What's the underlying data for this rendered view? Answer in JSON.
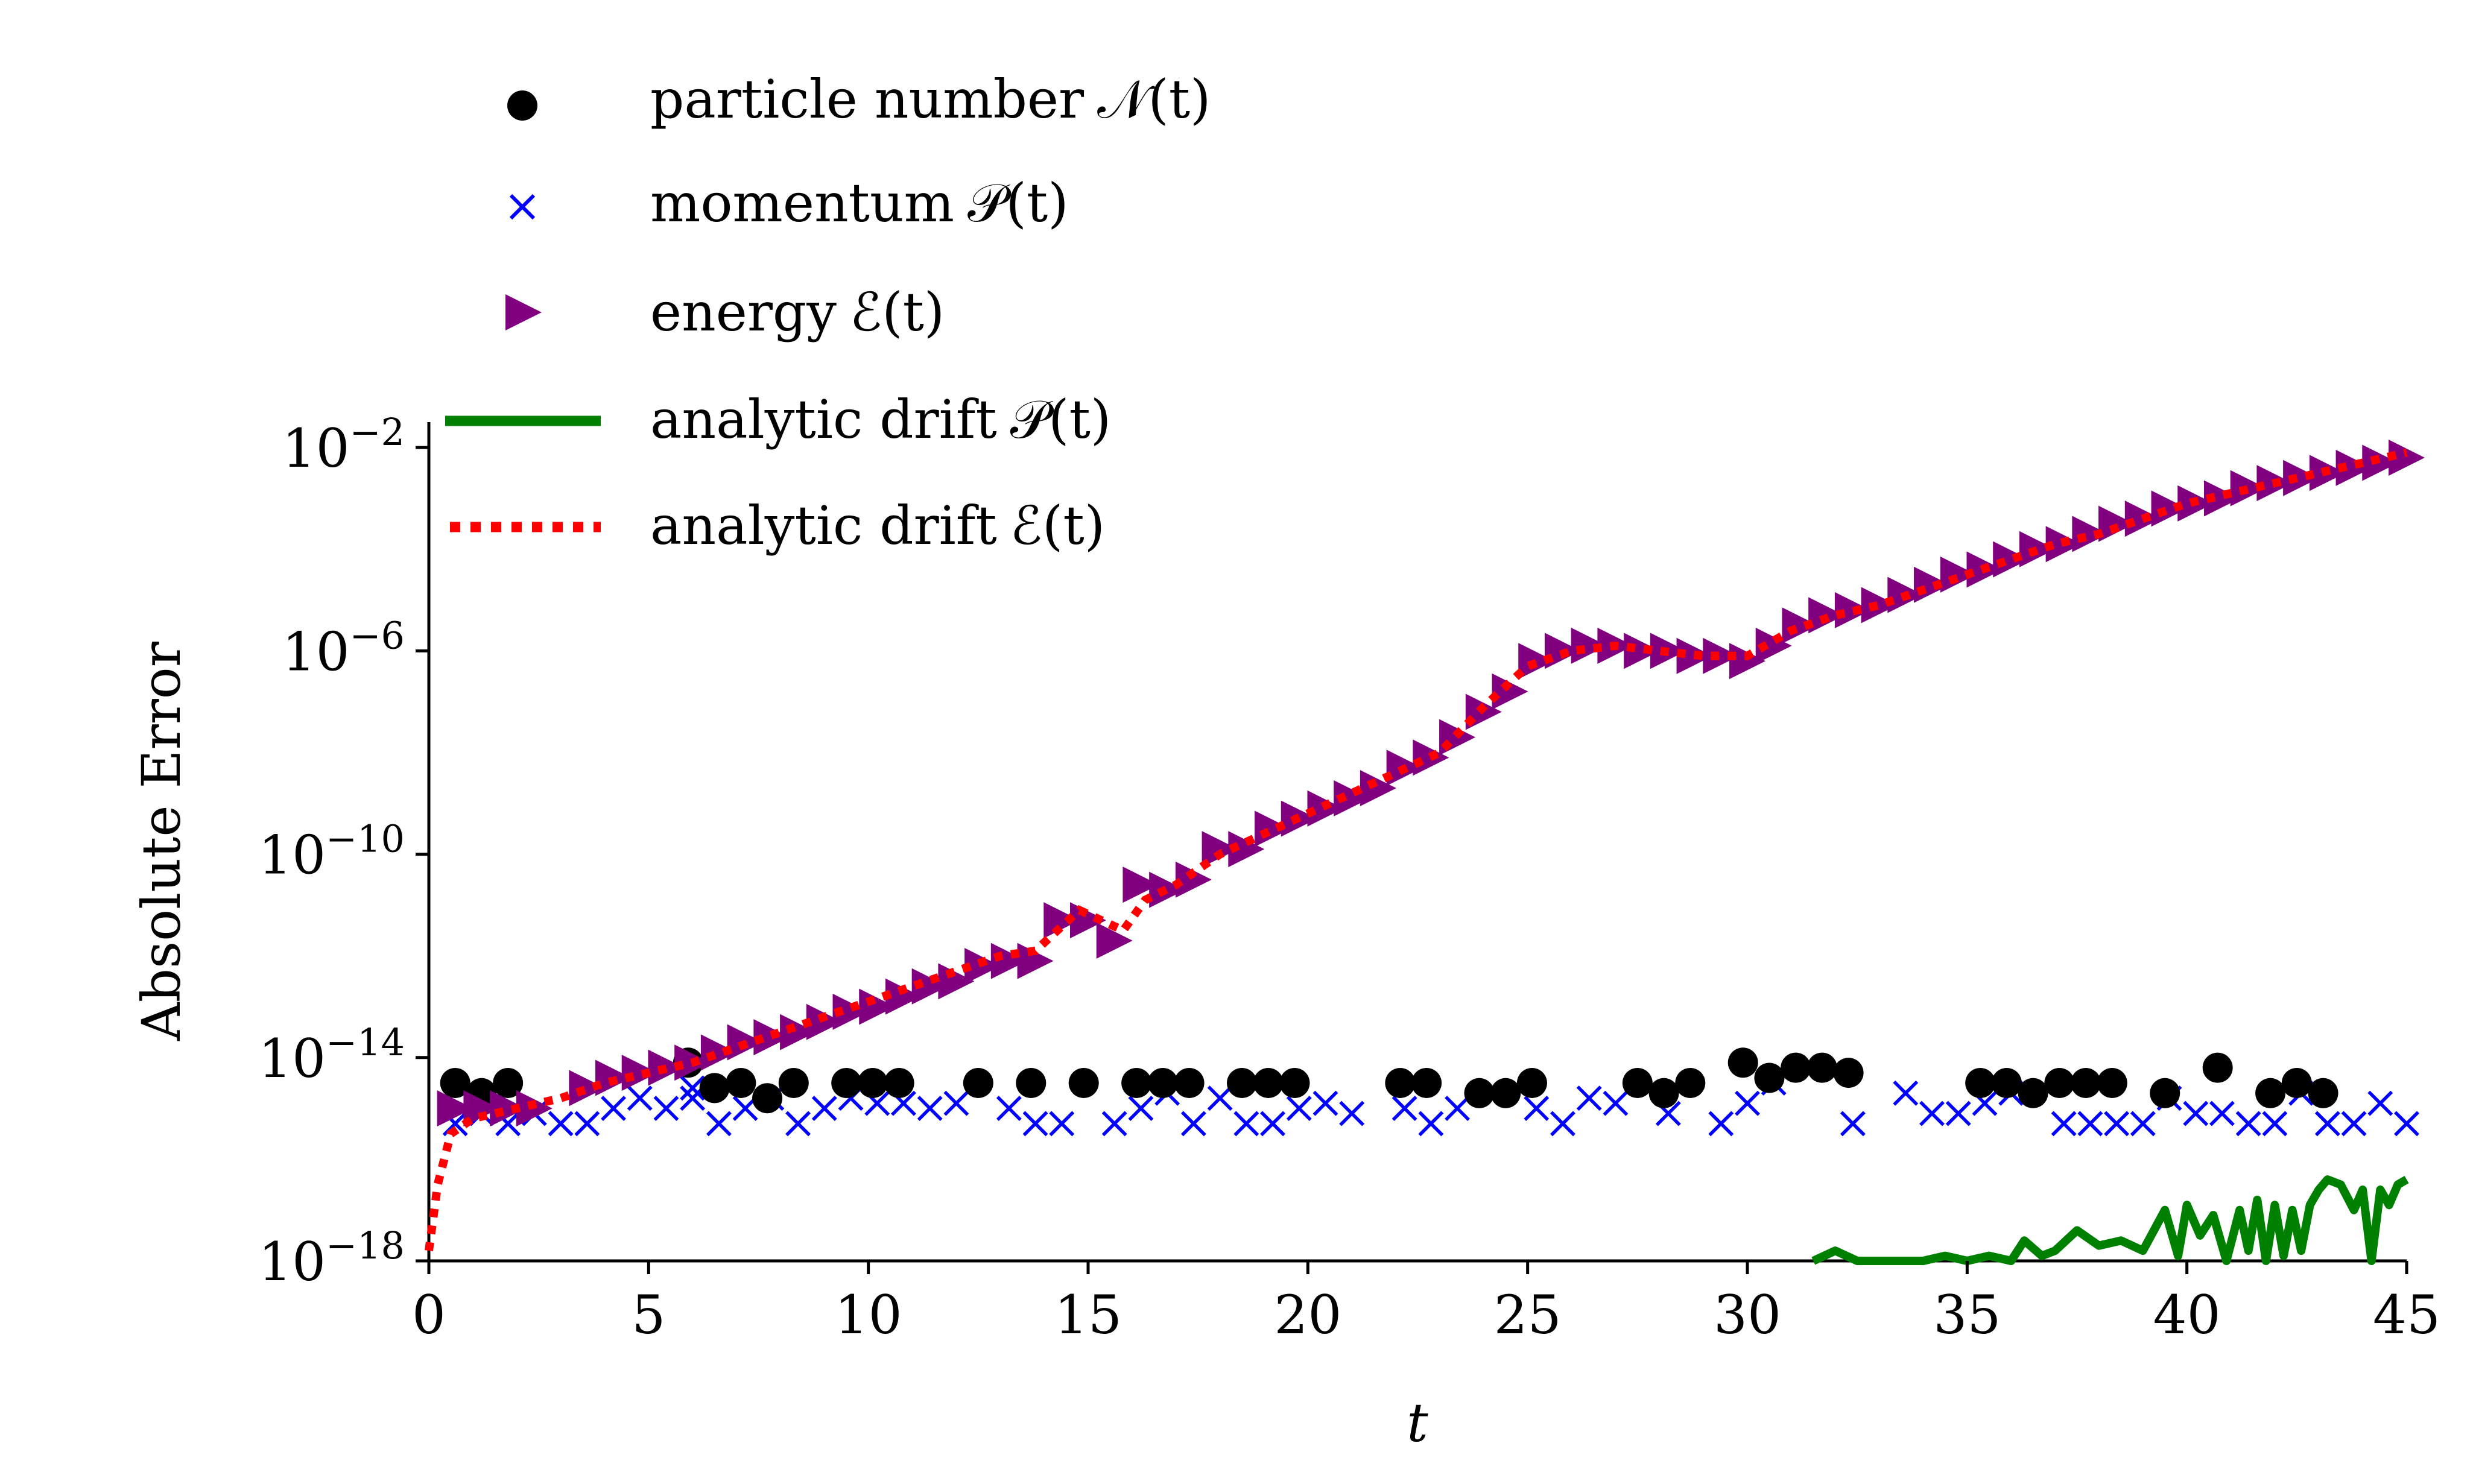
{
  "chart_data": {
    "type": "scatter",
    "title": "",
    "xlabel": "t",
    "ylabel": "Absolute Error",
    "xlim": [
      0,
      45
    ],
    "ylim_log10": [
      -18,
      -1.5
    ],
    "x_ticks": [
      0,
      5,
      10,
      15,
      20,
      25,
      30,
      35,
      40,
      45
    ],
    "x_tick_labels": [
      "0",
      "5",
      "10",
      "15",
      "20",
      "25",
      "30",
      "35",
      "40",
      "45"
    ],
    "y_ticks_log10": [
      -2,
      -6,
      -10,
      -14,
      -18
    ],
    "y_tick_base": "10",
    "y_tick_exponents": [
      "−2",
      "−6",
      "−10",
      "−14",
      "−18"
    ],
    "legend_position": "top-center",
    "colors": {
      "particle": "#000000",
      "momentum": "#0000ff",
      "energy": "#800080",
      "drift_p": "#008000",
      "drift_e": "#ff0000"
    },
    "series": [
      {
        "name": "particle number",
        "legend_math": "𝒩(t)",
        "marker": "circle",
        "x": [
          0.6,
          1.2,
          1.8,
          5.9,
          6.5,
          7.1,
          7.7,
          8.3,
          9.5,
          10.1,
          10.7,
          12.5,
          13.7,
          14.9,
          16.1,
          16.7,
          17.3,
          18.5,
          19.1,
          19.7,
          22.1,
          22.7,
          23.9,
          24.5,
          25.1,
          27.5,
          28.1,
          28.7,
          29.9,
          30.5,
          31.1,
          31.7,
          32.3,
          35.3,
          35.9,
          36.5,
          37.1,
          37.7,
          38.3,
          39.5,
          40.7,
          41.9,
          42.5,
          43.1
        ],
        "log10_values": [
          -14.5,
          -14.7,
          -14.5,
          -14.1,
          -14.6,
          -14.5,
          -14.8,
          -14.5,
          -14.5,
          -14.5,
          -14.5,
          -14.5,
          -14.5,
          -14.5,
          -14.5,
          -14.5,
          -14.5,
          -14.5,
          -14.5,
          -14.5,
          -14.5,
          -14.5,
          -14.7,
          -14.7,
          -14.5,
          -14.5,
          -14.7,
          -14.5,
          -14.1,
          -14.4,
          -14.2,
          -14.2,
          -14.3,
          -14.5,
          -14.5,
          -14.7,
          -14.5,
          -14.5,
          -14.5,
          -14.7,
          -14.2,
          -14.7,
          -14.5,
          -14.7
        ]
      },
      {
        "name": "momentum",
        "legend_math": "𝒫(t)",
        "marker": "x",
        "x": [
          0.6,
          1.2,
          1.8,
          2.4,
          3.0,
          3.6,
          4.2,
          4.8,
          5.4,
          6.0,
          6.0,
          6.6,
          7.2,
          7.8,
          8.4,
          9.0,
          9.6,
          10.2,
          10.8,
          11.4,
          12.0,
          13.2,
          13.8,
          14.4,
          15.6,
          16.2,
          16.8,
          17.4,
          18.0,
          18.6,
          19.2,
          19.8,
          20.4,
          21.0,
          22.2,
          22.8,
          23.4,
          25.2,
          25.8,
          26.4,
          27.0,
          28.2,
          29.4,
          30.0,
          30.6,
          32.4,
          33.6,
          34.2,
          34.8,
          35.4,
          36.0,
          37.2,
          37.8,
          38.4,
          39.0,
          39.6,
          40.2,
          40.8,
          41.4,
          42.0,
          42.6,
          43.2,
          43.8,
          44.4,
          45.0
        ],
        "log10_values": [
          -15.3,
          -15.1,
          -15.3,
          -15.1,
          -15.3,
          -15.3,
          -15.0,
          -14.8,
          -15.0,
          -14.8,
          -14.6,
          -15.3,
          -15.0,
          -14.8,
          -15.3,
          -15.0,
          -14.8,
          -14.9,
          -14.9,
          -15.0,
          -14.9,
          -15.0,
          -15.3,
          -15.3,
          -15.3,
          -15.0,
          -14.7,
          -15.3,
          -14.8,
          -15.3,
          -15.3,
          -15.0,
          -14.9,
          -15.1,
          -15.0,
          -15.3,
          -15.0,
          -15.0,
          -15.3,
          -14.8,
          -14.9,
          -15.1,
          -15.3,
          -14.9,
          -14.5,
          -15.3,
          -14.7,
          -15.1,
          -15.1,
          -14.9,
          -14.7,
          -15.3,
          -15.3,
          -15.3,
          -15.3,
          -14.8,
          -15.1,
          -15.1,
          -15.3,
          -15.3,
          -14.7,
          -15.3,
          -15.3,
          -14.9,
          -15.3
        ]
      },
      {
        "name": "energy",
        "legend_math": "ℰ(t)",
        "marker": "triangle-right",
        "x": [
          0.6,
          1.2,
          1.8,
          2.4,
          3.6,
          4.2,
          4.8,
          5.4,
          6.0,
          6.6,
          7.2,
          7.8,
          8.4,
          9.0,
          9.6,
          10.2,
          10.8,
          11.4,
          12.0,
          12.6,
          13.2,
          13.8,
          14.4,
          15.0,
          15.6,
          16.2,
          16.8,
          17.4,
          18.0,
          18.6,
          19.2,
          19.8,
          20.4,
          21.0,
          21.6,
          22.2,
          22.8,
          23.4,
          24.0,
          24.6,
          25.2,
          25.8,
          26.4,
          27.0,
          27.6,
          28.2,
          28.8,
          29.4,
          30.0,
          30.6,
          31.2,
          31.8,
          32.4,
          33.0,
          33.6,
          34.2,
          34.8,
          35.4,
          36.0,
          36.6,
          37.2,
          37.8,
          38.4,
          39.0,
          39.6,
          40.2,
          40.8,
          41.4,
          42.0,
          42.6,
          43.2,
          43.8,
          44.4,
          45.0
        ],
        "log10_values": [
          -15.0,
          -15.0,
          -15.0,
          -15.0,
          -14.6,
          -14.4,
          -14.3,
          -14.2,
          -14.1,
          -13.9,
          -13.7,
          -13.6,
          -13.5,
          -13.3,
          -13.1,
          -13.0,
          -12.8,
          -12.6,
          -12.5,
          -12.2,
          -12.1,
          -12.1,
          -11.3,
          -11.3,
          -11.7,
          -10.6,
          -10.7,
          -10.5,
          -9.9,
          -9.9,
          -9.5,
          -9.3,
          -9.1,
          -8.9,
          -8.7,
          -8.3,
          -8.1,
          -7.7,
          -7.2,
          -6.8,
          -6.2,
          -6.0,
          -5.9,
          -5.9,
          -6.0,
          -6.0,
          -6.1,
          -6.1,
          -6.2,
          -5.9,
          -5.5,
          -5.3,
          -5.2,
          -5.1,
          -4.9,
          -4.7,
          -4.5,
          -4.4,
          -4.2,
          -4.0,
          -3.9,
          -3.7,
          -3.5,
          -3.4,
          -3.2,
          -3.1,
          -3.0,
          -2.8,
          -2.7,
          -2.6,
          -2.5,
          -2.4,
          -2.3,
          -2.2
        ]
      },
      {
        "name": "analytic drift",
        "legend_math": "𝒫(t)",
        "marker": "line-solid",
        "x": [
          31.5,
          32.0,
          32.5,
          33.0,
          33.5,
          34.0,
          34.5,
          35.0,
          35.5,
          36.0,
          36.3,
          36.7,
          37.0,
          37.5,
          38.0,
          38.5,
          39.0,
          39.5,
          39.8,
          40.0,
          40.3,
          40.6,
          40.9,
          41.2,
          41.4,
          41.6,
          41.8,
          42.0,
          42.2,
          42.4,
          42.6,
          42.8,
          43.0,
          43.2,
          43.5,
          43.8,
          44.0,
          44.2,
          44.4,
          44.6,
          44.8,
          45.0
        ],
        "log10_values": [
          -18.0,
          -17.8,
          -18.0,
          -18.0,
          -18.0,
          -18.0,
          -17.9,
          -18.0,
          -17.9,
          -18.0,
          -17.6,
          -17.9,
          -17.8,
          -17.4,
          -17.7,
          -17.6,
          -17.8,
          -17.0,
          -17.9,
          -16.9,
          -17.5,
          -17.1,
          -18.0,
          -17.0,
          -17.8,
          -16.8,
          -18.0,
          -16.9,
          -17.9,
          -17.0,
          -17.8,
          -16.9,
          -16.6,
          -16.4,
          -16.5,
          -17.0,
          -16.6,
          -18.0,
          -16.6,
          -16.9,
          -16.5,
          -16.4
        ]
      },
      {
        "name": "analytic drift",
        "legend_math": "ℰ(t)",
        "marker": "line-dotted",
        "x": [
          0.0,
          0.2,
          0.5,
          1.0,
          2.0,
          3.0,
          4.0,
          5.0,
          6.0,
          7.0,
          8.0,
          9.0,
          10.0,
          11.0,
          12.0,
          13.0,
          13.8,
          14.3,
          14.8,
          15.3,
          15.8,
          16.3,
          17.0,
          18.0,
          19.0,
          20.0,
          21.0,
          22.0,
          23.0,
          24.0,
          25.0,
          26.0,
          27.0,
          28.0,
          29.0,
          30.0,
          31.0,
          32.0,
          33.0,
          34.0,
          35.0,
          36.0,
          37.0,
          38.0,
          39.0,
          40.0,
          41.0,
          42.0,
          43.0,
          44.0,
          45.0
        ],
        "log10_values": [
          -17.8,
          -16.5,
          -15.5,
          -15.2,
          -15.0,
          -14.8,
          -14.5,
          -14.3,
          -14.1,
          -13.8,
          -13.5,
          -13.2,
          -12.9,
          -12.6,
          -12.3,
          -12.0,
          -11.9,
          -11.5,
          -11.1,
          -11.3,
          -11.5,
          -10.9,
          -10.6,
          -10.0,
          -9.6,
          -9.2,
          -8.8,
          -8.4,
          -8.0,
          -7.1,
          -6.3,
          -6.0,
          -5.9,
          -6.0,
          -6.1,
          -6.1,
          -5.6,
          -5.3,
          -5.1,
          -4.8,
          -4.5,
          -4.2,
          -3.9,
          -3.7,
          -3.4,
          -3.1,
          -2.9,
          -2.7,
          -2.5,
          -2.3,
          -2.1
        ]
      }
    ]
  }
}
